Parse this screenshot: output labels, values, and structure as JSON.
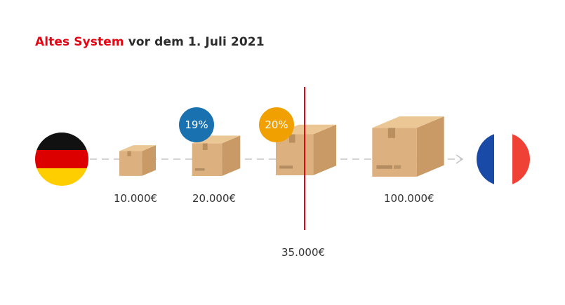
{
  "title": {
    "accent": "Altes System",
    "rest": " vor dem 1. Juli 2021"
  },
  "colors": {
    "accent_red": "#e30613",
    "badge_blue": "#1a71b0",
    "badge_orange": "#f0a000",
    "de_black": "#111111",
    "de_red": "#dd0000",
    "de_gold": "#ffce00",
    "fr_blue": "#1a4aa8",
    "fr_white": "#ffffff",
    "fr_red": "#ef4135",
    "line": "#c4c4c4"
  },
  "flags": {
    "start": "germany-flag",
    "end": "france-flag"
  },
  "thresholds": [
    {
      "label": "10.000€"
    },
    {
      "label": "20.000€"
    },
    {
      "label": "35.000€"
    },
    {
      "label": "100.000€"
    }
  ],
  "badges": [
    {
      "text": "19%"
    },
    {
      "text": "20%"
    }
  ]
}
